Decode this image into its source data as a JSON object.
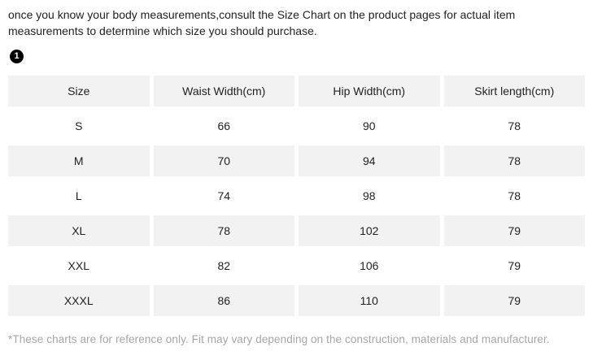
{
  "intro": "once you know your body measurements,consult the Size Chart on the product pages for actual item measurements to determine which size you should purchase.",
  "badge": "1",
  "table": {
    "headers": [
      "Size",
      "Waist Width(cm)",
      "Hip Width(cm)",
      "Skirt length(cm)"
    ],
    "rows": [
      [
        "S",
        "66",
        "90",
        "78"
      ],
      [
        "M",
        "70",
        "94",
        "78"
      ],
      [
        "L",
        "74",
        "98",
        "78"
      ],
      [
        "XL",
        "78",
        "102",
        "79"
      ],
      [
        "XXL",
        "82",
        "106",
        "79"
      ],
      [
        "XXXL",
        "86",
        "110",
        "79"
      ]
    ]
  },
  "footnote": "*These charts are for reference only. Fit may vary depending on the construction, materials and manufacturer.",
  "colors": {
    "row_alt": "#f2f2f2",
    "badge_bg": "#000000",
    "footnote_text": "#a6a6a6"
  }
}
